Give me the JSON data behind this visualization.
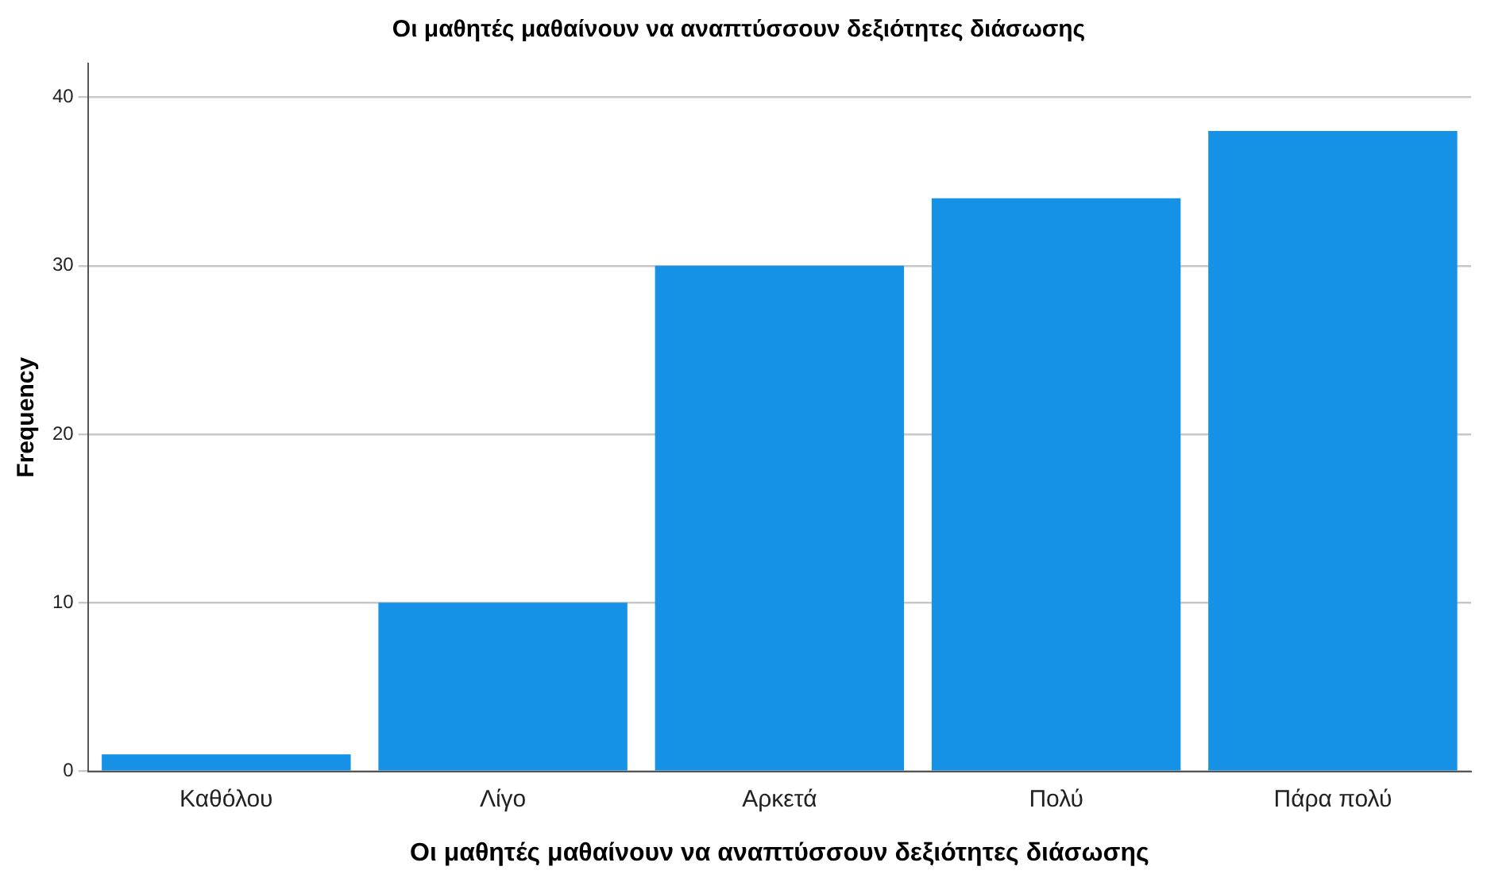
{
  "chart_data": {
    "type": "bar",
    "title": "Οι μαθητές μαθαίνουν να αναπτύσσουν δεξιότητες διάσωσης",
    "xlabel": "Οι μαθητές μαθαίνουν να αναπτύσσουν δεξιότητες διάσωσης",
    "ylabel": "Frequency",
    "categories": [
      "Καθόλου",
      "Λίγο",
      "Αρκετά",
      "Πολύ",
      "Πάρα πολύ"
    ],
    "values": [
      1,
      10,
      30,
      34,
      38
    ],
    "color": "#1591e6",
    "ylim": [
      0,
      42
    ],
    "yticks": [
      0,
      10,
      20,
      30,
      40
    ],
    "grid": "y",
    "legend": false
  }
}
